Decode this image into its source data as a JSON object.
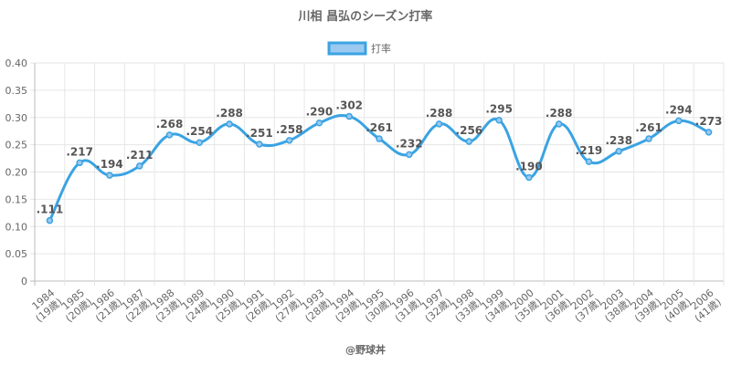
{
  "chart_data": {
    "type": "line",
    "title": "川相 昌弘のシーズン打率",
    "legend": {
      "label": "打率",
      "position": "top"
    },
    "credit": "@野球丼",
    "categories": [
      "1984\n(19歳)",
      "1985\n(20歳)",
      "1986\n(21歳)",
      "1987\n(22歳)",
      "1988\n(23歳)",
      "1989\n(24歳)",
      "1990\n(25歳)",
      "1991\n(26歳)",
      "1992\n(27歳)",
      "1993\n(28歳)",
      "1994\n(29歳)",
      "1995\n(30歳)",
      "1996\n(31歳)",
      "1997\n(32歳)",
      "1998\n(33歳)",
      "1999\n(34歳)",
      "2000\n(35歳)",
      "2001\n(36歳)",
      "2002\n(37歳)",
      "2003\n(38歳)",
      "2004\n(39歳)",
      "2005\n(40歳)",
      "2006\n(41歳)"
    ],
    "values": [
      0.111,
      0.217,
      0.194,
      0.211,
      0.268,
      0.254,
      0.288,
      0.251,
      0.258,
      0.29,
      0.302,
      0.261,
      0.232,
      0.288,
      0.256,
      0.295,
      0.19,
      0.288,
      0.219,
      0.238,
      0.261,
      0.294,
      0.273
    ],
    "data_labels": [
      ".111",
      ".217",
      ".194",
      ".211",
      ".268",
      ".254",
      ".288",
      ".251",
      ".258",
      ".290",
      ".302",
      ".261",
      ".232",
      ".288",
      ".256",
      ".295",
      ".190",
      ".288",
      ".219",
      ".238",
      ".261",
      ".294",
      ".273"
    ],
    "yticks": [
      "0",
      "0.05",
      "0.10",
      "0.15",
      "0.20",
      "0.25",
      "0.30",
      "0.35",
      "0.40"
    ],
    "ylim": [
      0,
      0.4
    ],
    "grid": true,
    "color": "#3aa3e3"
  }
}
